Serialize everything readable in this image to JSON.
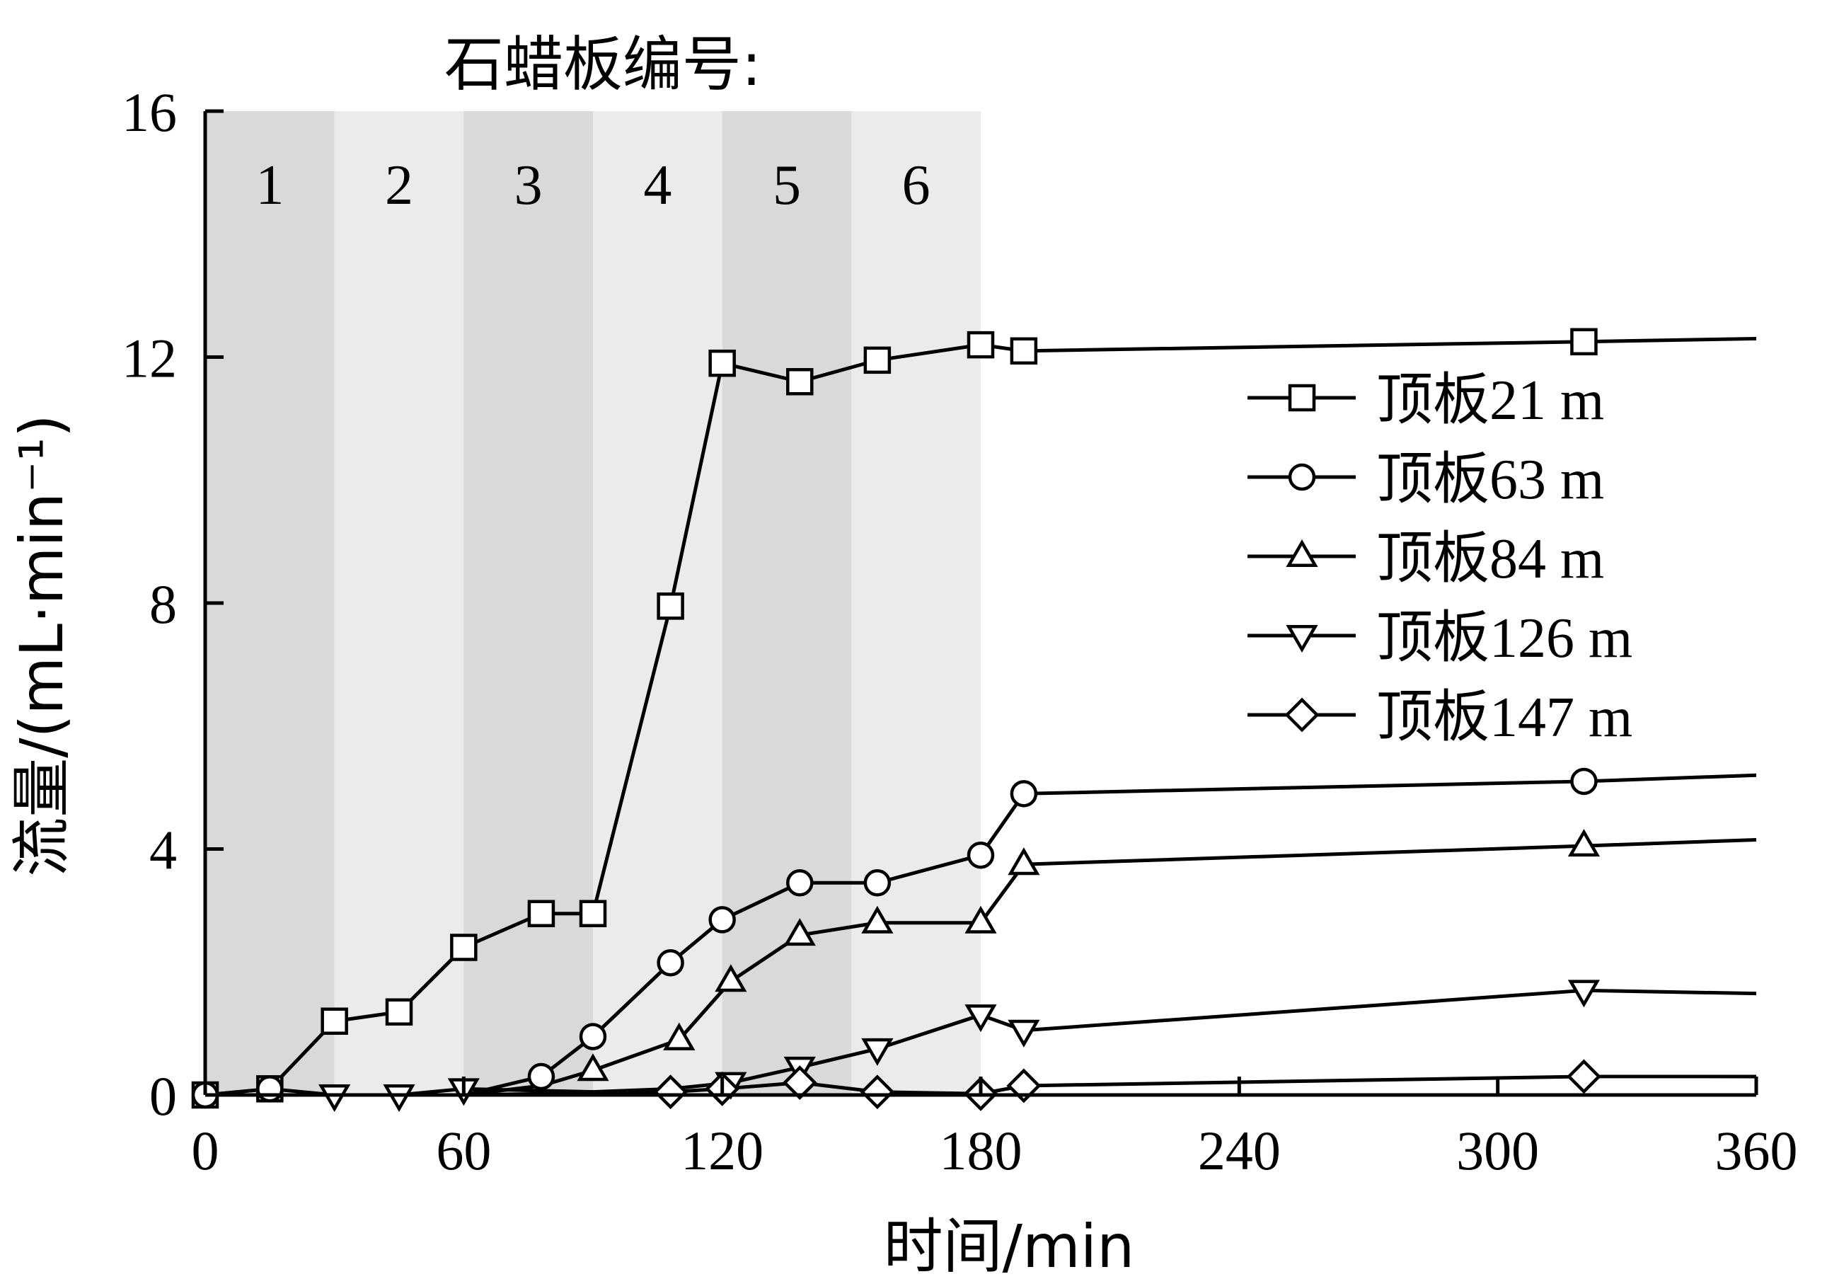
{
  "chart_data": {
    "type": "line",
    "title": "",
    "xlabel": "时间/min",
    "ylabel": "流量/(mL·min⁻¹)",
    "xlim": [
      0,
      360
    ],
    "ylim": [
      0,
      16
    ],
    "xticks": [
      0,
      60,
      120,
      180,
      240,
      300,
      360
    ],
    "yticks": [
      0,
      4,
      8,
      12,
      16
    ],
    "xtick_labels": [
      "0",
      "60",
      "120",
      "180",
      "240",
      "300",
      "360"
    ],
    "ytick_labels": [
      "0",
      "4",
      "8",
      "12",
      "16"
    ],
    "grid": false,
    "legend_position": "right",
    "plates": {
      "title": "石蜡板编号:",
      "bands": [
        {
          "label": "1",
          "x_start": 0,
          "x_end": 30,
          "color": "#d9d9d9"
        },
        {
          "label": "2",
          "x_start": 30,
          "x_end": 60,
          "color": "#ebebeb"
        },
        {
          "label": "3",
          "x_start": 60,
          "x_end": 90,
          "color": "#d9d9d9"
        },
        {
          "label": "4",
          "x_start": 90,
          "x_end": 120,
          "color": "#ebebeb"
        },
        {
          "label": "5",
          "x_start": 120,
          "x_end": 150,
          "color": "#d9d9d9"
        },
        {
          "label": "6",
          "x_start": 150,
          "x_end": 180,
          "color": "#ebebeb"
        }
      ]
    },
    "series": [
      {
        "name": "顶板21 m",
        "prefix": "顶板",
        "suffix": "21 m",
        "marker": "square",
        "points": [
          [
            0,
            0
          ],
          [
            15,
            0.1
          ],
          [
            30,
            1.2
          ],
          [
            45,
            1.35
          ],
          [
            60,
            2.4
          ],
          [
            78,
            2.95
          ],
          [
            90,
            2.95
          ],
          [
            108,
            7.95
          ],
          [
            120,
            11.9
          ],
          [
            138,
            11.6
          ],
          [
            156,
            11.95
          ],
          [
            180,
            12.2
          ],
          [
            190,
            12.1
          ],
          [
            320,
            12.25
          ],
          [
            360,
            12.3
          ]
        ],
        "marker_points": [
          [
            0,
            0
          ],
          [
            15,
            0.1
          ],
          [
            30,
            1.2
          ],
          [
            45,
            1.35
          ],
          [
            60,
            2.4
          ],
          [
            78,
            2.95
          ],
          [
            90,
            2.95
          ],
          [
            108,
            7.95
          ],
          [
            120,
            11.9
          ],
          [
            138,
            11.6
          ],
          [
            156,
            11.95
          ],
          [
            180,
            12.2
          ],
          [
            190,
            12.1
          ],
          [
            320,
            12.25
          ]
        ]
      },
      {
        "name": "顶板63  m",
        "prefix": "顶板",
        "suffix": "63  m",
        "marker": "circle",
        "points": [
          [
            0,
            0
          ],
          [
            15,
            0.1
          ],
          [
            30,
            0
          ],
          [
            45,
            0
          ],
          [
            60,
            0
          ],
          [
            78,
            0.3
          ],
          [
            90,
            0.95
          ],
          [
            108,
            2.15
          ],
          [
            120,
            2.85
          ],
          [
            138,
            3.45
          ],
          [
            156,
            3.45
          ],
          [
            180,
            3.9
          ],
          [
            190,
            4.9
          ],
          [
            320,
            5.1
          ],
          [
            360,
            5.2
          ]
        ],
        "marker_points": [
          [
            0,
            0
          ],
          [
            15,
            0.1
          ],
          [
            78,
            0.3
          ],
          [
            90,
            0.95
          ],
          [
            108,
            2.15
          ],
          [
            120,
            2.85
          ],
          [
            138,
            3.45
          ],
          [
            156,
            3.45
          ],
          [
            180,
            3.9
          ],
          [
            190,
            4.9
          ],
          [
            320,
            5.1
          ]
        ]
      },
      {
        "name": "顶板84 m",
        "prefix": "顶板",
        "suffix": "84 m",
        "marker": "triangle-up",
        "points": [
          [
            0,
            0
          ],
          [
            30,
            0
          ],
          [
            45,
            0
          ],
          [
            60,
            0
          ],
          [
            78,
            0.15
          ],
          [
            90,
            0.4
          ],
          [
            110,
            0.9
          ],
          [
            122,
            1.85
          ],
          [
            138,
            2.6
          ],
          [
            156,
            2.8
          ],
          [
            180,
            2.8
          ],
          [
            190,
            3.75
          ],
          [
            320,
            4.05
          ],
          [
            360,
            4.15
          ]
        ],
        "marker_points": [
          [
            90,
            0.4
          ],
          [
            110,
            0.9
          ],
          [
            122,
            1.85
          ],
          [
            138,
            2.6
          ],
          [
            156,
            2.8
          ],
          [
            180,
            2.8
          ],
          [
            190,
            3.75
          ],
          [
            320,
            4.05
          ]
        ]
      },
      {
        "name": "顶板126 m",
        "prefix": "顶板",
        "suffix": "126 m",
        "marker": "triangle-down",
        "points": [
          [
            0,
            0
          ],
          [
            30,
            0
          ],
          [
            45,
            0
          ],
          [
            60,
            0.1
          ],
          [
            90,
            0.05
          ],
          [
            108,
            0.1
          ],
          [
            122,
            0.2
          ],
          [
            138,
            0.45
          ],
          [
            156,
            0.75
          ],
          [
            180,
            1.3
          ],
          [
            190,
            1.05
          ],
          [
            320,
            1.7
          ],
          [
            360,
            1.65
          ]
        ],
        "marker_points": [
          [
            30,
            0
          ],
          [
            45,
            0
          ],
          [
            60,
            0.1
          ],
          [
            122,
            0.2
          ],
          [
            138,
            0.45
          ],
          [
            156,
            0.75
          ],
          [
            180,
            1.3
          ],
          [
            190,
            1.05
          ],
          [
            320,
            1.7
          ]
        ]
      },
      {
        "name": "顶板147 m",
        "prefix": "顶板",
        "suffix": "147 m",
        "marker": "diamond",
        "points": [
          [
            0,
            0
          ],
          [
            60,
            0
          ],
          [
            108,
            0.05
          ],
          [
            120,
            0.1
          ],
          [
            138,
            0.2
          ],
          [
            156,
            0.05
          ],
          [
            180,
            0.02
          ],
          [
            190,
            0.15
          ],
          [
            320,
            0.3
          ],
          [
            360,
            0.3
          ]
        ],
        "marker_points": [
          [
            108,
            0.05
          ],
          [
            120,
            0.1
          ],
          [
            138,
            0.2
          ],
          [
            156,
            0.05
          ],
          [
            180,
            0.02
          ],
          [
            190,
            0.15
          ],
          [
            320,
            0.3
          ]
        ]
      }
    ]
  }
}
